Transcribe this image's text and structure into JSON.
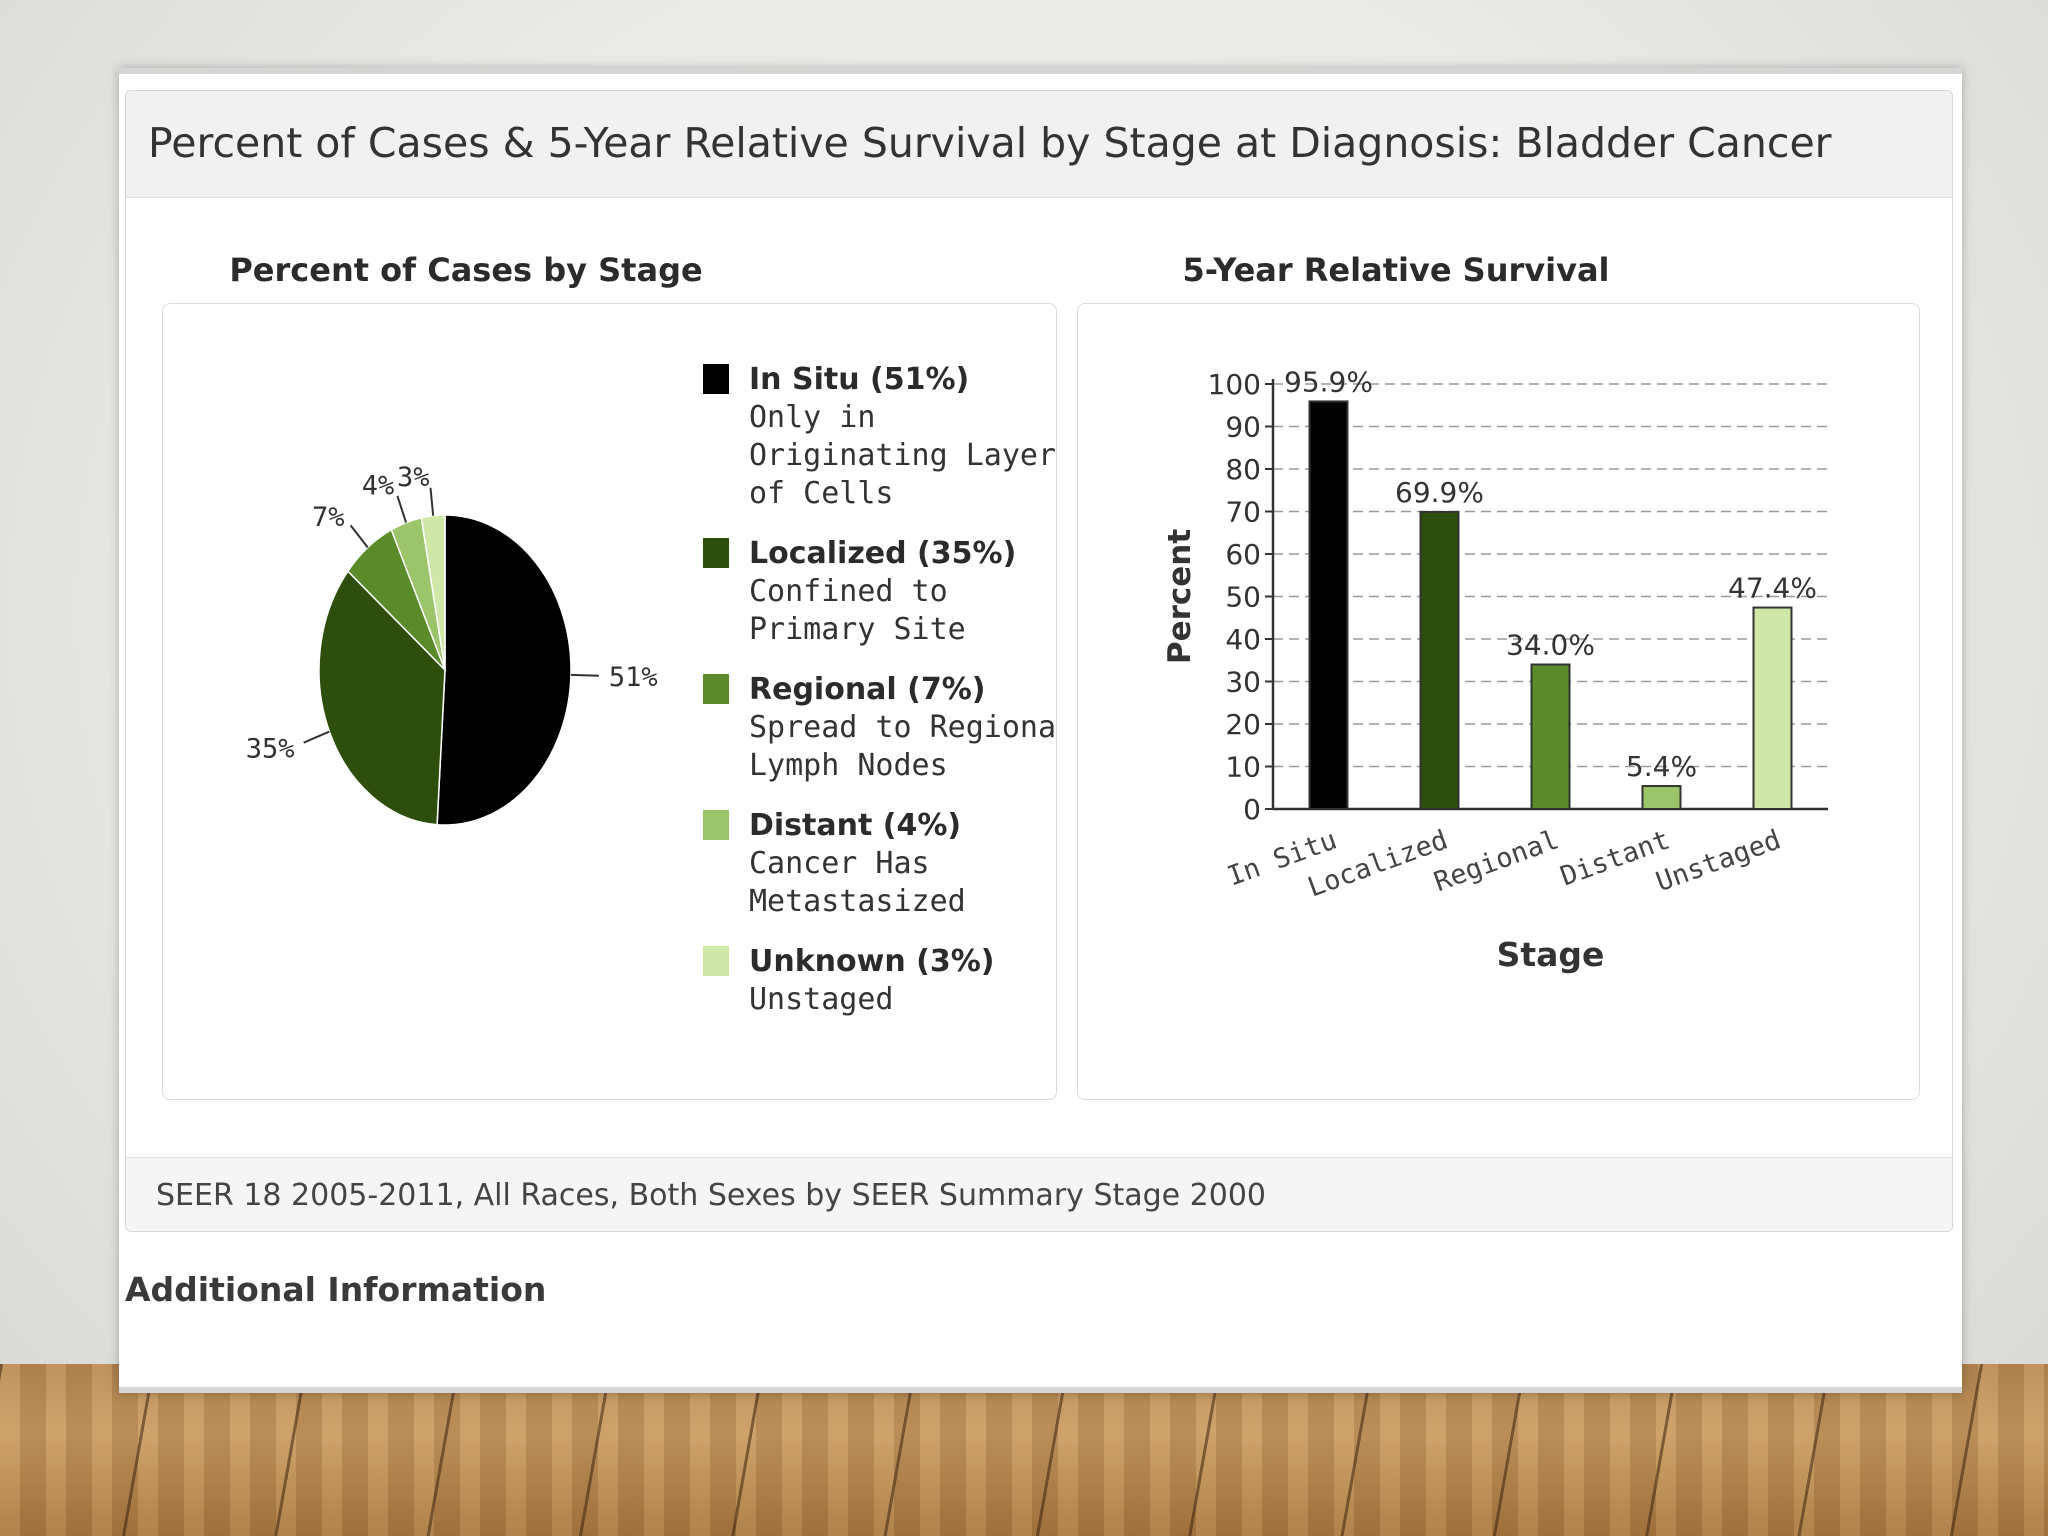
{
  "panel": {
    "title": "Percent of Cases & 5-Year Relative Survival by Stage at Diagnosis: Bladder Cancer",
    "footer": "SEER 18 2005-2011, All Races, Both Sexes by SEER Summary Stage 2000"
  },
  "additional_info": "Additional Information",
  "chart_data": [
    {
      "type": "pie",
      "title": "Percent of Cases by Stage",
      "slices": [
        {
          "label": "In Situ (51%)",
          "description": [
            "Only in",
            "Originating Layer",
            "of Cells"
          ],
          "value": 51,
          "data_label": "51%",
          "color": "#000000"
        },
        {
          "label": "Localized (35%)",
          "description": [
            "Confined to",
            "Primary Site"
          ],
          "value": 35,
          "data_label": "35%",
          "color": "#2e4f0c"
        },
        {
          "label": "Regional (7%)",
          "description": [
            "Spread to Regional",
            "Lymph Nodes"
          ],
          "value": 7,
          "data_label": "7%",
          "color": "#5b8a2a"
        },
        {
          "label": "Distant (4%)",
          "description": [
            "Cancer Has",
            "Metastasized"
          ],
          "value": 4,
          "data_label": "4%",
          "color": "#9cc46a"
        },
        {
          "label": "Unknown (3%)",
          "description": [
            "Unstaged"
          ],
          "value": 3,
          "data_label": "3%",
          "color": "#cfe8a8"
        }
      ],
      "legend_position": "right"
    },
    {
      "type": "bar",
      "title": "5-Year Relative Survival",
      "categories": [
        "In Situ",
        "Localized",
        "Regional",
        "Distant",
        "Unstaged"
      ],
      "values": [
        95.9,
        69.9,
        34.0,
        5.4,
        47.4
      ],
      "data_labels": [
        "95.9%",
        "69.9%",
        "34.0%",
        "5.4%",
        "47.4%"
      ],
      "colors": [
        "#000000",
        "#2e4f0c",
        "#5b8a2a",
        "#9cc46a",
        "#cfe8a8"
      ],
      "xlabel": "Stage",
      "ylabel": "Percent",
      "ylim": [
        0,
        100
      ],
      "yticks": [
        "0",
        "10",
        "20",
        "30",
        "40",
        "50",
        "60",
        "70",
        "80",
        "90",
        "100"
      ],
      "grid": true
    }
  ]
}
